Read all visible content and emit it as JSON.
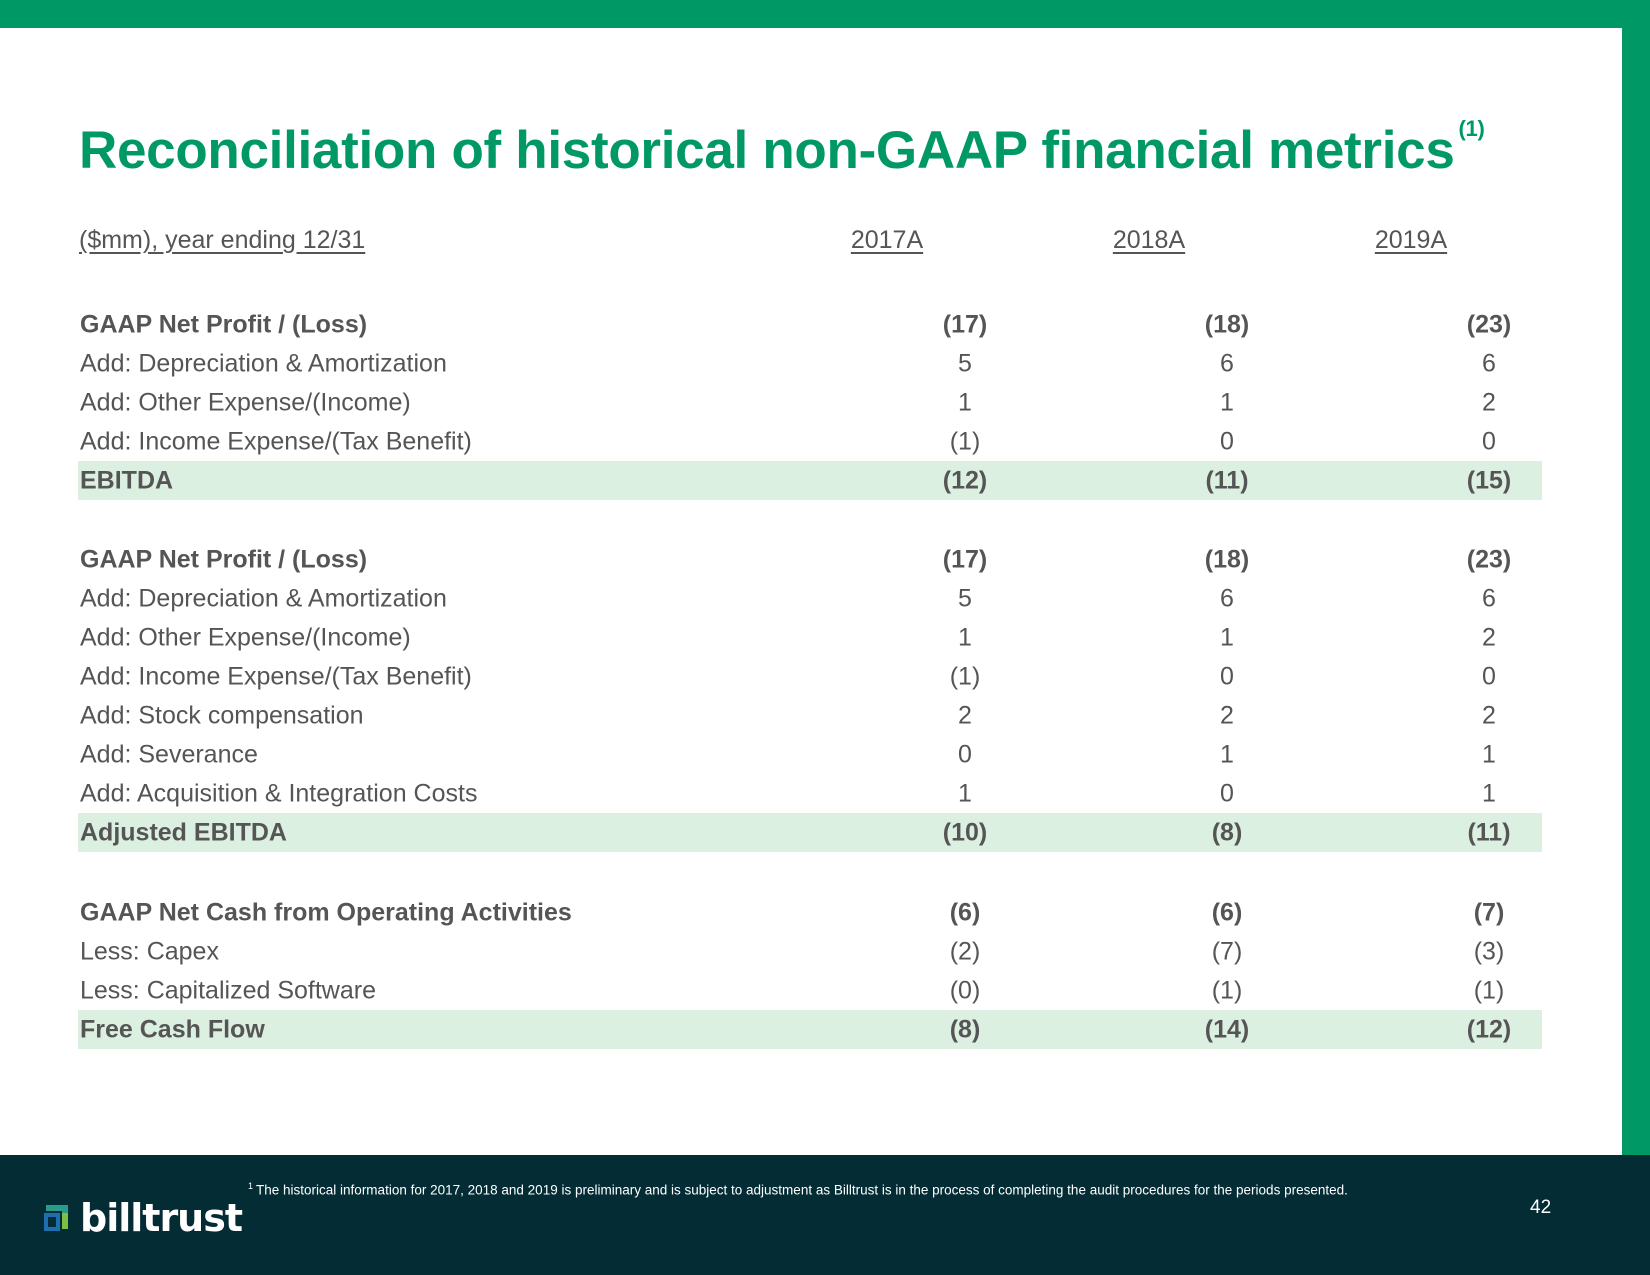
{
  "title": "Reconciliation of historical non-GAAP financial metrics",
  "title_note": "(1)",
  "header": {
    "label": "($mm), year ending 12/31",
    "years": [
      "2017A",
      "2018A",
      "2019A"
    ]
  },
  "sections": [
    {
      "rows": [
        {
          "label": "GAAP Net Profit / (Loss)",
          "values": [
            "(17)",
            "(18)",
            "(23)"
          ],
          "bold": true,
          "total": false
        },
        {
          "label": "Add: Depreciation & Amortization",
          "values": [
            "5",
            "6",
            "6"
          ],
          "bold": false,
          "total": false
        },
        {
          "label": "Add: Other Expense/(Income)",
          "values": [
            "1",
            "1",
            "2"
          ],
          "bold": false,
          "total": false
        },
        {
          "label": "Add: Income Expense/(Tax Benefit)",
          "values": [
            "(1)",
            "0",
            "0"
          ],
          "bold": false,
          "total": false
        },
        {
          "label": "EBITDA",
          "values": [
            "(12)",
            "(11)",
            "(15)"
          ],
          "bold": true,
          "total": true
        }
      ]
    },
    {
      "rows": [
        {
          "label": "GAAP Net Profit / (Loss)",
          "values": [
            "(17)",
            "(18)",
            "(23)"
          ],
          "bold": true,
          "total": false
        },
        {
          "label": "Add: Depreciation & Amortization",
          "values": [
            "5",
            "6",
            "6"
          ],
          "bold": false,
          "total": false
        },
        {
          "label": "Add: Other Expense/(Income)",
          "values": [
            "1",
            "1",
            "2"
          ],
          "bold": false,
          "total": false
        },
        {
          "label": "Add: Income Expense/(Tax Benefit)",
          "values": [
            "(1)",
            "0",
            "0"
          ],
          "bold": false,
          "total": false
        },
        {
          "label": "Add: Stock compensation",
          "values": [
            "2",
            "2",
            "2"
          ],
          "bold": false,
          "total": false
        },
        {
          "label": "Add: Severance",
          "values": [
            "0",
            "1",
            "1"
          ],
          "bold": false,
          "total": false
        },
        {
          "label": "Add: Acquisition & Integration Costs",
          "values": [
            "1",
            "0",
            "1"
          ],
          "bold": false,
          "total": false
        },
        {
          "label": "Adjusted EBITDA",
          "values": [
            "(10)",
            "(8)",
            "(11)"
          ],
          "bold": true,
          "total": true
        }
      ]
    },
    {
      "rows": [
        {
          "label": "GAAP Net Cash from Operating Activities",
          "values": [
            "(6)",
            "(6)",
            "(7)"
          ],
          "bold": true,
          "total": false
        },
        {
          "label": "Less: Capex",
          "values": [
            "(2)",
            "(7)",
            "(3)"
          ],
          "bold": false,
          "total": false
        },
        {
          "label": "Less: Capitalized Software",
          "values": [
            "(0)",
            "(1)",
            "(1)"
          ],
          "bold": false,
          "total": false
        },
        {
          "label": "Free Cash Flow",
          "values": [
            "(8)",
            "(14)",
            "(12)"
          ],
          "bold": true,
          "total": true
        }
      ]
    }
  ],
  "footer": {
    "logo_text": "billtrust",
    "footnote_marker": "1",
    "footnote": "The historical information for 2017, 2018 and 2019 is preliminary and is subject to adjustment as Billtrust is in the process of completing the audit procedures for the periods presented.",
    "page_number": "42"
  },
  "colors": {
    "brand_green": "#009966",
    "total_row_bg": "#dcf0e2",
    "footer_bg": "#032c35",
    "text_gray": "#555555"
  }
}
